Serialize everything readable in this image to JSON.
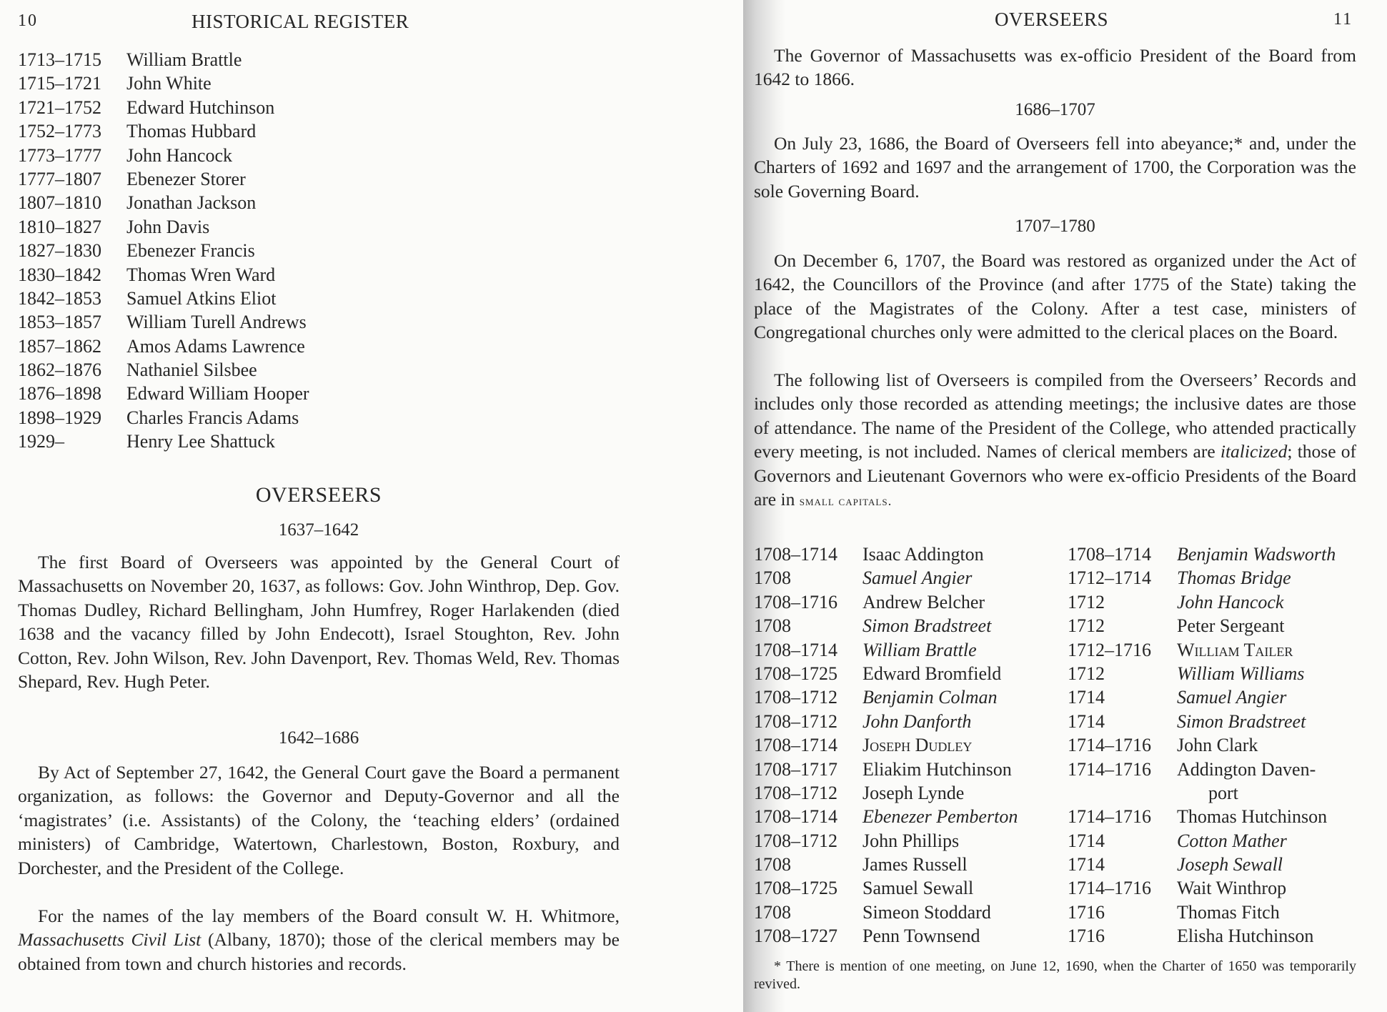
{
  "left_page": {
    "page_number": "10",
    "running_head": "HISTORICAL REGISTER",
    "presidents": [
      {
        "dates": "1713–1715",
        "name": "William Brattle"
      },
      {
        "dates": "1715–1721",
        "name": "John White"
      },
      {
        "dates": "1721–1752",
        "name": "Edward Hutchinson"
      },
      {
        "dates": "1752–1773",
        "name": "Thomas Hubbard"
      },
      {
        "dates": "1773–1777",
        "name": "John Hancock"
      },
      {
        "dates": "1777–1807",
        "name": "Ebenezer Storer"
      },
      {
        "dates": "1807–1810",
        "name": "Jonathan Jackson"
      },
      {
        "dates": "1810–1827",
        "name": "John Davis"
      },
      {
        "dates": "1827–1830",
        "name": "Ebenezer Francis"
      },
      {
        "dates": "1830–1842",
        "name": "Thomas Wren Ward"
      },
      {
        "dates": "1842–1853",
        "name": "Samuel Atkins Eliot"
      },
      {
        "dates": "1853–1857",
        "name": "William Turell Andrews"
      },
      {
        "dates": "1857–1862",
        "name": "Amos Adams Lawrence"
      },
      {
        "dates": "1862–1876",
        "name": "Nathaniel Silsbee"
      },
      {
        "dates": "1876–1898",
        "name": "Edward William Hooper"
      },
      {
        "dates": "1898–1929",
        "name": "Charles Francis Adams"
      },
      {
        "dates": "1929–",
        "name": "Henry Lee Shattuck"
      }
    ],
    "section_title": "OVERSEERS",
    "period1": "1637–1642",
    "para1": "The first Board of Overseers was appointed by the General Court of Massachusetts on November 20, 1637, as follows: Gov. John Winthrop, Dep. Gov. Thomas Dudley, Richard Bellingham, John Humfrey, Roger Harlakenden (died 1638 and the vacancy filled by John Endecott), Israel Stoughton, Rev. John Cotton, Rev. John Wilson, Rev. John Davenport, Rev. Thomas Weld, Rev. Thomas Shepard, Rev. Hugh Peter.",
    "period2": "1642–1686",
    "para2": "By Act of September 27, 1642, the General Court gave the Board a permanent organization, as follows: the Governor and Deputy-Governor and all the ‘magistrates’ (i.e. Assistants) of the Colony, the ‘teaching elders’ (ordained ministers) of Cambridge, Watertown, Charlestown, Boston, Roxbury, and Dorchester, and the President of the College.",
    "para3_a": "For the names of the lay members of the Board consult W. H. Whitmore, ",
    "para3_italic": "Massachusetts Civil List",
    "para3_b": " (Albany, 1870); those of the clerical members may be obtained from town and church histories and records."
  },
  "right_page": {
    "running_head": "OVERSEERS",
    "page_number": "11",
    "para1": "The Governor of Massachusetts was ex-officio President of the Board from 1642 to 1866.",
    "period1": "1686–1707",
    "para2": "On July 23, 1686, the Board of Overseers fell into abeyance;* and, under the Charters of 1692 and 1697 and the arrangement of 1700, the Corporation was the sole Governing Board.",
    "period2": "1707–1780",
    "para3": "On December 6, 1707, the Board was restored as organized under the Act of 1642, the Councillors of the Province (and after 1775 of the State) taking the place of the Magistrates of the Colony. After a test case, ministers of Congregational churches only were admitted to the clerical places on the Board.",
    "para4_a": "The following list of Overseers is compiled from the Overseers’ Records and includes only those recorded as attending meetings; the inclusive dates are those of attendance. The name of the President of the College, who attended practically every meeting, is not included. Names of clerical members are ",
    "para4_italic": "italicized",
    "para4_b": "; those of Governors and Lieutenant Governors who were ex-officio Presidents of the Board are in ",
    "para4_smallcaps": "small capitals.",
    "overseers_left": [
      {
        "dates": "1708–1714",
        "name": "Isaac Addington",
        "style": "roman"
      },
      {
        "dates": "1708",
        "name": "Samuel Angier",
        "style": "italic"
      },
      {
        "dates": "1708–1716",
        "name": "Andrew Belcher",
        "style": "roman"
      },
      {
        "dates": "1708",
        "name": "Simon Bradstreet",
        "style": "italic"
      },
      {
        "dates": "1708–1714",
        "name": "William Brattle",
        "style": "italic"
      },
      {
        "dates": "1708–1725",
        "name": "Edward Bromfield",
        "style": "roman"
      },
      {
        "dates": "1708–1712",
        "name": "Benjamin Colman",
        "style": "italic"
      },
      {
        "dates": "1708–1712",
        "name": "John Danforth",
        "style": "italic"
      },
      {
        "dates": "1708–1714",
        "name": "Joseph Dudley",
        "style": "smallcaps"
      },
      {
        "dates": "1708–1717",
        "name": "Eliakim Hutchinson",
        "style": "roman"
      },
      {
        "dates": "1708–1712",
        "name": "Joseph Lynde",
        "style": "roman"
      },
      {
        "dates": "1708–1714",
        "name": "Ebenezer Pemberton",
        "style": "italic"
      },
      {
        "dates": "1708–1712",
        "name": "John Phillips",
        "style": "roman"
      },
      {
        "dates": "1708",
        "name": "James Russell",
        "style": "roman"
      },
      {
        "dates": "1708–1725",
        "name": "Samuel Sewall",
        "style": "roman"
      },
      {
        "dates": "1708",
        "name": "Simeon Stoddard",
        "style": "roman"
      },
      {
        "dates": "1708–1727",
        "name": "Penn Townsend",
        "style": "roman"
      }
    ],
    "overseers_right": [
      {
        "dates": "1708–1714",
        "name": "Benjamin Wadsworth",
        "style": "italic"
      },
      {
        "dates": "1712–1714",
        "name": "Thomas Bridge",
        "style": "italic"
      },
      {
        "dates": "1712",
        "name": "John Hancock",
        "style": "italic"
      },
      {
        "dates": "1712",
        "name": "Peter Sergeant",
        "style": "roman"
      },
      {
        "dates": "1712–1716",
        "name": "William Tailer",
        "style": "smallcaps"
      },
      {
        "dates": "1712",
        "name": "William Williams",
        "style": "italic"
      },
      {
        "dates": "1714",
        "name": "Samuel Angier",
        "style": "italic"
      },
      {
        "dates": "1714",
        "name": "Simon Bradstreet",
        "style": "italic"
      },
      {
        "dates": "1714–1716",
        "name": "John Clark",
        "style": "roman"
      },
      {
        "dates": "1714–1716",
        "name": "Addington Daven-",
        "style": "roman"
      },
      {
        "dates": "",
        "name": "port",
        "style": "roman",
        "indent": true
      },
      {
        "dates": "1714–1716",
        "name": "Thomas Hutchinson",
        "style": "roman"
      },
      {
        "dates": "1714",
        "name": "Cotton Mather",
        "style": "italic"
      },
      {
        "dates": "1714",
        "name": "Joseph Sewall",
        "style": "italic"
      },
      {
        "dates": "1714–1716",
        "name": "Wait Winthrop",
        "style": "roman"
      },
      {
        "dates": "1716",
        "name": "Thomas Fitch",
        "style": "roman"
      },
      {
        "dates": "1716",
        "name": "Elisha Hutchinson",
        "style": "roman"
      }
    ],
    "footnote": "* There is mention of one meeting, on June 12, 1690, when the Charter of 1650 was temporarily revived."
  }
}
